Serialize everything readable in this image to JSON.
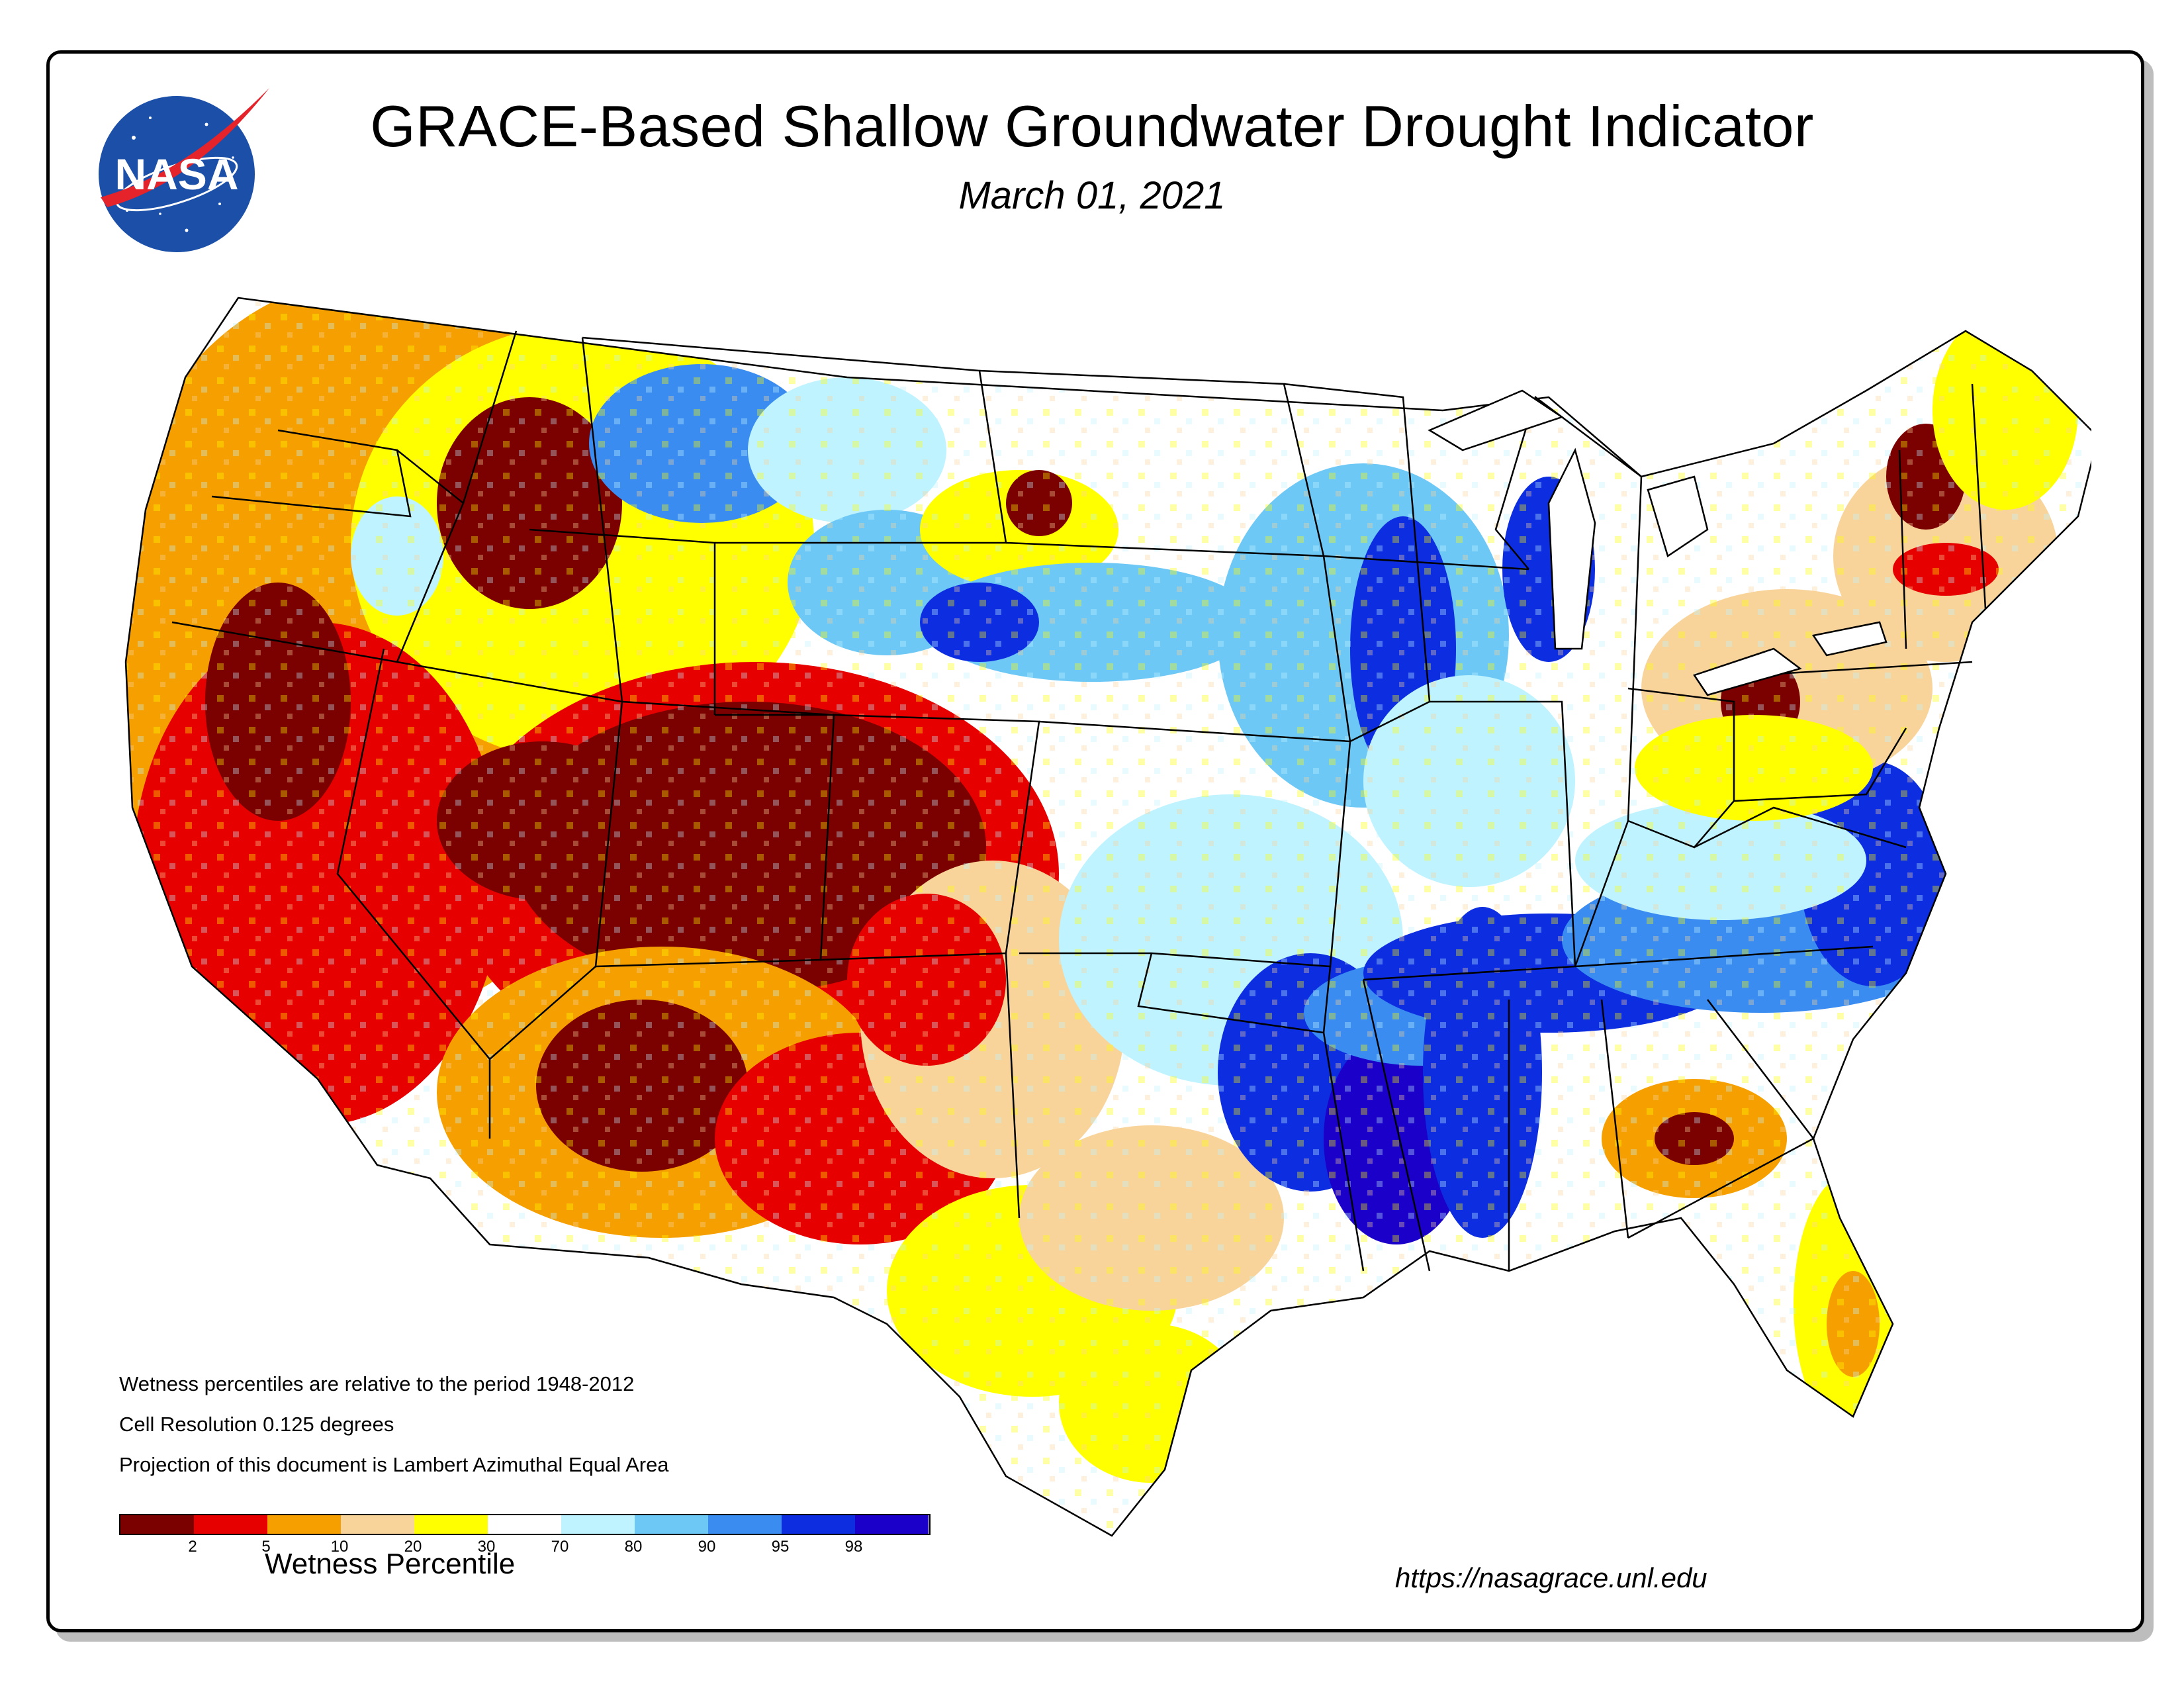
{
  "title": "GRACE-Based Shallow Groundwater Drought Indicator",
  "date": "March 01, 2021",
  "logo": {
    "text": "NASA",
    "colors": {
      "disc": "#1b4fa8",
      "swoosh": "#e4232b",
      "text": "#ffffff"
    }
  },
  "notes": [
    "Wetness percentiles are relative to the period 1948-2012",
    "Cell Resolution 0.125 degrees",
    "Projection of this document is Lambert Azimuthal Equal Area"
  ],
  "legend": {
    "title": "Wetness Percentile",
    "colors": [
      "#7b0000",
      "#e60000",
      "#f5a000",
      "#f8d49b",
      "#ffff00",
      "#ffffff",
      "#bff3ff",
      "#6ec8f5",
      "#3a8cf0",
      "#0d2de0",
      "#1a00c8"
    ],
    "ticks": [
      "2",
      "5",
      "10",
      "20",
      "30",
      "70",
      "80",
      "90",
      "95",
      "98"
    ]
  },
  "url": "https://nasagrace.unl.edu"
}
